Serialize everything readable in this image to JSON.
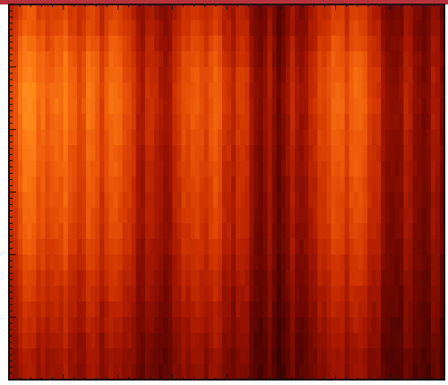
{
  "colors": {
    "top_band": "#b8323c",
    "frame": "#111111",
    "background": "#ffffff",
    "colormap": [
      "#1a0000",
      "#4a0300",
      "#7a0a00",
      "#a81800",
      "#cf3400",
      "#ee5a0a",
      "#ff8418",
      "#ffa92e"
    ]
  },
  "chart_data": {
    "type": "heatmap",
    "colormap": "hot",
    "title": "",
    "xlabel": "",
    "ylabel": "",
    "x_tick_labels": [],
    "y_tick_labels": [],
    "legend": "none",
    "grid": false,
    "columns": 96,
    "column_profile": [
      0.62,
      0.7,
      0.78,
      0.82,
      0.86,
      0.84,
      0.8,
      0.76,
      0.7,
      0.72,
      0.76,
      0.8,
      0.82,
      0.78,
      0.72,
      0.68,
      0.72,
      0.78,
      0.74,
      0.7,
      0.66,
      0.72,
      0.76,
      0.8,
      0.78,
      0.7,
      0.62,
      0.56,
      0.48,
      0.44,
      0.52,
      0.58,
      0.54,
      0.46,
      0.4,
      0.42,
      0.5,
      0.6,
      0.66,
      0.7,
      0.72,
      0.68,
      0.64,
      0.66,
      0.7,
      0.72,
      0.68,
      0.62,
      0.56,
      0.54,
      0.58,
      0.62,
      0.56,
      0.44,
      0.34,
      0.3,
      0.36,
      0.42,
      0.34,
      0.28,
      0.34,
      0.44,
      0.5,
      0.46,
      0.4,
      0.44,
      0.52,
      0.58,
      0.62,
      0.64,
      0.68,
      0.72,
      0.74,
      0.72,
      0.7,
      0.74,
      0.78,
      0.76,
      0.7,
      0.64,
      0.58,
      0.52,
      0.44,
      0.34,
      0.28,
      0.32,
      0.4,
      0.48,
      0.44,
      0.36,
      0.3,
      0.26,
      0.34,
      0.42,
      0.36,
      0.3
    ],
    "row_profile": [
      0.8,
      0.84,
      0.9,
      0.95,
      0.98,
      1.0,
      1.0,
      0.98,
      0.96,
      0.94,
      0.92,
      0.9,
      0.88,
      0.86,
      0.84,
      0.8,
      0.76,
      0.72,
      0.68,
      0.64,
      0.6,
      0.56,
      0.52,
      0.5
    ]
  }
}
